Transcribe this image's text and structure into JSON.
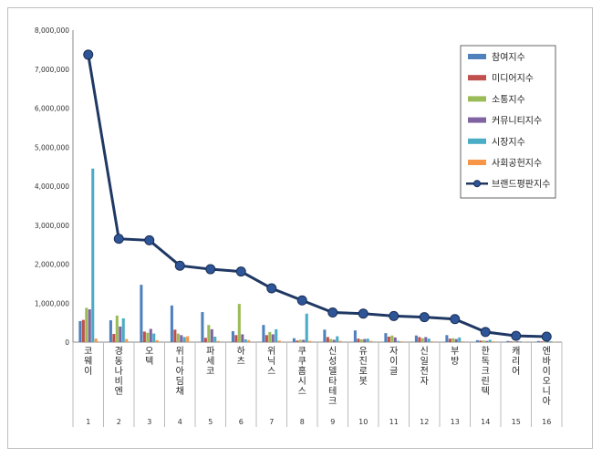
{
  "chart_data": {
    "type": "bar",
    "title": "",
    "xlabel": "",
    "ylabel": "",
    "ylim": [
      0,
      8000000
    ],
    "yticks": [
      "0",
      "1,000,000",
      "2,000,000",
      "3,000,000",
      "4,000,000",
      "5,000,000",
      "6,000,000",
      "7,000,000",
      "8,000,000"
    ],
    "categories": [
      "코웨이",
      "경동나비엔",
      "오텍",
      "위니아딤채",
      "파세코",
      "하츠",
      "위닉스",
      "쿠쿠홈시스",
      "신성델타테크",
      "유진로봇",
      "자이글",
      "신일전자",
      "부방",
      "한독크린텍",
      "캐리어",
      "엔바이오니아"
    ],
    "ranks": [
      "1",
      "2",
      "3",
      "4",
      "5",
      "6",
      "7",
      "8",
      "9",
      "10",
      "11",
      "12",
      "13",
      "14",
      "15",
      "16"
    ],
    "legend_position": "top-right",
    "series": [
      {
        "name": "참여지수",
        "color": "#4f81bd",
        "values": [
          540000,
          560000,
          1470000,
          940000,
          770000,
          280000,
          440000,
          100000,
          320000,
          300000,
          230000,
          170000,
          180000,
          50000,
          30000,
          30000
        ]
      },
      {
        "name": "미디어지수",
        "color": "#c0504d",
        "values": [
          570000,
          210000,
          270000,
          320000,
          110000,
          180000,
          180000,
          40000,
          130000,
          90000,
          140000,
          130000,
          90000,
          40000,
          20000,
          20000
        ]
      },
      {
        "name": "소통지수",
        "color": "#9bbb59",
        "values": [
          880000,
          680000,
          240000,
          220000,
          440000,
          980000,
          260000,
          60000,
          80000,
          70000,
          170000,
          100000,
          100000,
          40000,
          20000,
          20000
        ]
      },
      {
        "name": "커뮤니티지수",
        "color": "#8064a2",
        "values": [
          840000,
          400000,
          340000,
          180000,
          330000,
          200000,
          200000,
          60000,
          60000,
          80000,
          120000,
          130000,
          80000,
          30000,
          20000,
          20000
        ]
      },
      {
        "name": "시장지수",
        "color": "#4bacc6",
        "values": [
          4450000,
          610000,
          220000,
          130000,
          140000,
          70000,
          330000,
          730000,
          150000,
          90000,
          30000,
          90000,
          120000,
          60000,
          20000,
          20000
        ]
      },
      {
        "name": "사회공헌지수",
        "color": "#f79646",
        "values": [
          90000,
          80000,
          50000,
          150000,
          30000,
          50000,
          40000,
          30000,
          30000,
          30000,
          20000,
          20000,
          20000,
          20000,
          10000,
          10000
        ]
      },
      {
        "name": "브랜드평판지수",
        "color": "#1f3864",
        "type": "line",
        "values": [
          7370000,
          2650000,
          2610000,
          1960000,
          1870000,
          1810000,
          1380000,
          1070000,
          760000,
          730000,
          670000,
          640000,
          590000,
          260000,
          160000,
          140000
        ]
      }
    ]
  }
}
